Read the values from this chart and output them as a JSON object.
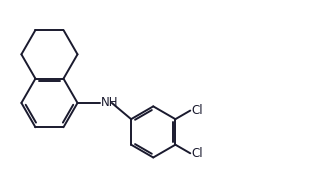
{
  "background_color": "#ffffff",
  "line_color": "#1a1a2e",
  "line_width": 1.4,
  "font_size": 8.5,
  "nh_label": "NH",
  "cl1_label": "Cl",
  "cl2_label": "Cl",
  "figsize": [
    3.14,
    1.8
  ],
  "dpi": 100,
  "xlim": [
    0,
    10
  ],
  "ylim": [
    0,
    5.73
  ]
}
